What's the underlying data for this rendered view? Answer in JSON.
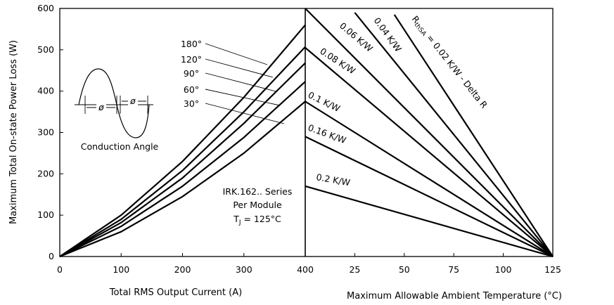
{
  "chart_data": [
    {
      "type": "line",
      "title": "",
      "xlabel": "Total RMS Output Current (A)",
      "ylabel": "Maximum Total On-state Power Loss (W)",
      "xlim": [
        0,
        400
      ],
      "ylim": [
        0,
        600
      ],
      "x_ticks": [
        "0",
        "100",
        "200",
        "300",
        "400"
      ],
      "y_ticks": [
        "0",
        "100",
        "200",
        "300",
        "400",
        "500",
        "600"
      ],
      "grid": false,
      "series": [
        {
          "name": "180°",
          "x": [
            0,
            100,
            200,
            300,
            400
          ],
          "y": [
            0,
            100,
            230,
            385,
            560
          ]
        },
        {
          "name": "120°",
          "x": [
            0,
            100,
            200,
            300,
            400
          ],
          "y": [
            0,
            90,
            208,
            350,
            507
          ]
        },
        {
          "name": "90°",
          "x": [
            0,
            100,
            200,
            300,
            400
          ],
          "y": [
            0,
            82,
            190,
            322,
            468
          ]
        },
        {
          "name": "60°",
          "x": [
            0,
            100,
            200,
            300,
            400
          ],
          "y": [
            0,
            73,
            170,
            288,
            423
          ]
        },
        {
          "name": "30°",
          "x": [
            0,
            100,
            200,
            300,
            400
          ],
          "y": [
            0,
            60,
            145,
            250,
            375
          ]
        }
      ],
      "annotations": {
        "inset_label": "Conduction Angle",
        "phi_symbol": "ø",
        "series_lines": [
          "IRK.162.. Series",
          "Per Module",
          "T",
          "J",
          " = 125°C"
        ]
      }
    },
    {
      "type": "line",
      "title": "",
      "xlabel": "Maximum Allowable Ambient Temperature (°C)",
      "ylabel": "",
      "xlim": [
        0,
        125
      ],
      "ylim": [
        0,
        600
      ],
      "x_ticks": [
        "25",
        "50",
        "75",
        "100",
        "125"
      ],
      "grid": false,
      "series": [
        {
          "name": "R thSA = 0.02 K/W - Delta R",
          "x": [
            45,
            125
          ],
          "y": [
            585,
            0
          ]
        },
        {
          "name": "0.04 K/W",
          "x": [
            25,
            125
          ],
          "y": [
            590,
            0
          ]
        },
        {
          "name": "0.06 K/W",
          "x": [
            0,
            125
          ],
          "y": [
            600,
            0
          ]
        },
        {
          "name": "0.08 K/W",
          "x": [
            0,
            125
          ],
          "y": [
            505,
            0
          ]
        },
        {
          "name": "0.1 K/W",
          "x": [
            0,
            125
          ],
          "y": [
            375,
            0
          ]
        },
        {
          "name": "0.16 K/W",
          "x": [
            0,
            125
          ],
          "y": [
            290,
            0
          ]
        },
        {
          "name": "0.2 K/W",
          "x": [
            0,
            125
          ],
          "y": [
            170,
            0
          ]
        }
      ],
      "annotations": {
        "r_label_main": "R",
        "r_label_sub": "thSA",
        "r_label_tail": " = 0.02 K/W - Delta R"
      }
    }
  ]
}
